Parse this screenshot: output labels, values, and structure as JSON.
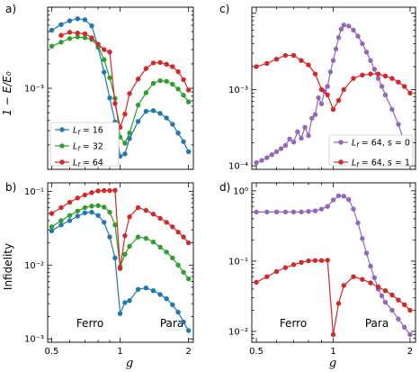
{
  "colors": {
    "blue": "#1f77b4",
    "green": "#2ca02c",
    "red": "#d62728",
    "purple": "#9467bd"
  },
  "chart_data": [
    {
      "panel": "a)",
      "type": "line",
      "ylabel": "1 − E/E₀",
      "xlabel": "",
      "xscale": "log",
      "yscale": "log",
      "xlim": [
        0.48,
        2.1
      ],
      "ylim": [
        0.0001,
        0.01
      ],
      "yticks": [
        {
          "v": 0.001,
          "label": "10⁻³"
        }
      ],
      "xticks": [],
      "legend": "lower-left",
      "series": [
        {
          "name": "L_f = 16",
          "color": "#1f77b4",
          "x": [
            0.5,
            0.55,
            0.6,
            0.65,
            0.7,
            0.75,
            0.8,
            0.85,
            0.9,
            0.95,
            1.0,
            1.05,
            1.1,
            1.2,
            1.3,
            1.4,
            1.5,
            1.6,
            1.7,
            1.8,
            1.9,
            2.0
          ],
          "y": [
            0.0052,
            0.0061,
            0.0068,
            0.0072,
            0.007,
            0.0059,
            0.0032,
            0.00158,
            0.00076,
            0.000385,
            0.000145,
            0.000155,
            0.00024,
            0.00039,
            0.00052,
            0.00053,
            0.00049,
            0.00043,
            0.00036,
            0.00028,
            0.00022,
            0.000165
          ]
        },
        {
          "name": "L_f = 32",
          "color": "#2ca02c",
          "x": [
            0.5,
            0.55,
            0.6,
            0.65,
            0.7,
            0.75,
            0.8,
            0.85,
            0.9,
            0.95,
            1.0,
            1.05,
            1.1,
            1.2,
            1.3,
            1.4,
            1.5,
            1.6,
            1.7,
            1.8,
            1.9,
            2.0
          ],
          "y": [
            0.0033,
            0.0037,
            0.0041,
            0.0043,
            0.0042,
            0.004,
            0.0033,
            0.00225,
            0.00135,
            0.00075,
            0.00025,
            0.00021,
            0.00028,
            0.00062,
            0.00088,
            0.00115,
            0.00124,
            0.00122,
            0.00112,
            0.00098,
            0.00082,
            0.00068
          ]
        },
        {
          "name": "L_f = 64",
          "color": "#d62728",
          "x": [
            0.55,
            0.6,
            0.65,
            0.7,
            0.75,
            0.8,
            0.85,
            0.9,
            0.95,
            1.0,
            1.05,
            1.1,
            1.2,
            1.3,
            1.4,
            1.5,
            1.6,
            1.7,
            1.8,
            1.9,
            2.0
          ],
          "y": [
            0.0045,
            0.0049,
            0.0048,
            0.0047,
            0.0042,
            0.0035,
            0.003,
            0.0028,
            0.00065,
            0.00033,
            0.00048,
            0.00086,
            0.0013,
            0.00175,
            0.00205,
            0.00208,
            0.00198,
            0.00185,
            0.0016,
            0.00128,
            0.00095
          ]
        }
      ]
    },
    {
      "panel": "b)",
      "type": "line",
      "ylabel": "Infidelity",
      "xlabel": "g",
      "xscale": "log",
      "yscale": "log",
      "xlim": [
        0.48,
        2.1
      ],
      "ylim": [
        0.0009,
        0.13
      ],
      "yticks": [
        {
          "v": 0.1,
          "label": "10⁻¹"
        },
        {
          "v": 0.01,
          "label": "10⁻²"
        },
        {
          "v": 0.001,
          "label": "10⁻³"
        }
      ],
      "xticks": [
        {
          "v": 0.5,
          "label": "0.5"
        },
        {
          "v": 1,
          "label": "1"
        },
        {
          "v": 2,
          "label": "2"
        }
      ],
      "annotations": [
        "Ferro",
        "Para"
      ],
      "series": [
        {
          "name": "L_f = 16",
          "color": "#1f77b4",
          "x": [
            0.5,
            0.55,
            0.6,
            0.65,
            0.7,
            0.75,
            0.8,
            0.85,
            0.9,
            0.95,
            1.0,
            1.05,
            1.1,
            1.2,
            1.3,
            1.4,
            1.5,
            1.6,
            1.7,
            1.8,
            1.9,
            2.0
          ],
          "y": [
            0.029,
            0.035,
            0.04,
            0.046,
            0.051,
            0.052,
            0.047,
            0.038,
            0.024,
            0.0125,
            0.0022,
            0.0031,
            0.0033,
            0.0047,
            0.0049,
            0.0045,
            0.004,
            0.0035,
            0.0029,
            0.0023,
            0.0017,
            0.0013
          ]
        },
        {
          "name": "L_f = 32",
          "color": "#2ca02c",
          "x": [
            0.5,
            0.55,
            0.6,
            0.65,
            0.7,
            0.75,
            0.8,
            0.85,
            0.9,
            0.95,
            1.0,
            1.05,
            1.1,
            1.2,
            1.3,
            1.4,
            1.5,
            1.6,
            1.7,
            1.8,
            1.9,
            2.0
          ],
          "y": [
            0.033,
            0.04,
            0.047,
            0.054,
            0.06,
            0.063,
            0.064,
            0.061,
            0.052,
            0.035,
            0.0095,
            0.014,
            0.018,
            0.024,
            0.023,
            0.0205,
            0.0175,
            0.015,
            0.0125,
            0.01,
            0.008,
            0.0065
          ]
        },
        {
          "name": "L_f = 64",
          "color": "#d62728",
          "x": [
            0.5,
            0.55,
            0.6,
            0.65,
            0.7,
            0.75,
            0.8,
            0.85,
            0.9,
            0.95,
            1.0,
            1.05,
            1.1,
            1.2,
            1.3,
            1.4,
            1.5,
            1.6,
            1.7,
            1.8,
            1.9,
            2.0
          ],
          "y": [
            0.05,
            0.06,
            0.071,
            0.081,
            0.089,
            0.096,
            0.101,
            0.102,
            0.102,
            0.103,
            0.009,
            0.025,
            0.045,
            0.06,
            0.055,
            0.049,
            0.043,
            0.038,
            0.033,
            0.028,
            0.024,
            0.02
          ]
        }
      ]
    },
    {
      "panel": "c)",
      "type": "line",
      "ylabel": "",
      "xlabel": "",
      "xscale": "log",
      "yscale": "log",
      "xlim": [
        0.48,
        2.1
      ],
      "ylim": [
        9e-05,
        0.012
      ],
      "yticks": [
        {
          "v": 0.001,
          "label": "10⁻³"
        },
        {
          "v": 0.0001,
          "label": "10⁻⁴"
        }
      ],
      "xticks": [],
      "legend": "lower-right",
      "series": [
        {
          "name": "L_f = 64, s = 0",
          "color": "#9467bd",
          "x": [
            0.5,
            0.525,
            0.55,
            0.575,
            0.6,
            0.625,
            0.65,
            0.675,
            0.7,
            0.725,
            0.75,
            0.775,
            0.8,
            0.825,
            0.85,
            0.875,
            0.9,
            0.925,
            0.95,
            0.975,
            1.0,
            1.025,
            1.05,
            1.075,
            1.1,
            1.15,
            1.2,
            1.25,
            1.3,
            1.35,
            1.4,
            1.45,
            1.5,
            1.55,
            1.6,
            1.7,
            1.8,
            1.9,
            2.0
          ],
          "y": [
            0.00011,
            0.000118,
            0.000128,
            0.00014,
            0.000153,
            0.000168,
            0.000185,
            0.000225,
            0.000205,
            0.00028,
            0.00023,
            0.00032,
            0.00025,
            0.00042,
            0.00047,
            0.00078,
            0.00065,
            0.00095,
            0.0011,
            0.0017,
            0.0024,
            0.0034,
            0.0048,
            0.0062,
            0.007,
            0.0068,
            0.006,
            0.005,
            0.004,
            0.0031,
            0.0024,
            0.00185,
            0.0014,
            0.0011,
            0.00085,
            0.00055,
            0.00035,
            0.0002,
            0.000135
          ]
        },
        {
          "name": "L_f = 64, s = 1",
          "color": "#d62728",
          "x": [
            0.5,
            0.55,
            0.6,
            0.65,
            0.7,
            0.75,
            0.8,
            0.85,
            0.9,
            0.95,
            1.0,
            1.05,
            1.1,
            1.2,
            1.3,
            1.4,
            1.5,
            1.6,
            1.7,
            1.8,
            1.9,
            2.0
          ],
          "y": [
            0.002,
            0.0022,
            0.0025,
            0.0028,
            0.0028,
            0.0024,
            0.0021,
            0.0016,
            0.001,
            0.00085,
            0.00055,
            0.00072,
            0.001,
            0.0014,
            0.00155,
            0.0016,
            0.0016,
            0.0015,
            0.0014,
            0.00125,
            0.0011,
            0.0009
          ]
        }
      ]
    },
    {
      "panel": "d)",
      "type": "line",
      "ylabel": "",
      "xlabel": "g",
      "xscale": "log",
      "yscale": "log",
      "xlim": [
        0.48,
        2.1
      ],
      "ylim": [
        0.007,
        1.3
      ],
      "yticks": [
        {
          "v": 1,
          "label": "10⁰"
        },
        {
          "v": 0.1,
          "label": "10⁻¹"
        },
        {
          "v": 0.01,
          "label": "10⁻²"
        }
      ],
      "xticks": [
        {
          "v": 0.5,
          "label": "0.5"
        },
        {
          "v": 1,
          "label": "1"
        },
        {
          "v": 2,
          "label": "2"
        }
      ],
      "annotations": [
        "Ferro",
        "Para"
      ],
      "series": [
        {
          "name": "L_f = 64, s = 0",
          "color": "#9467bd",
          "x": [
            0.5,
            0.55,
            0.6,
            0.65,
            0.7,
            0.75,
            0.8,
            0.85,
            0.9,
            0.95,
            1.0,
            1.05,
            1.1,
            1.15,
            1.2,
            1.25,
            1.3,
            1.35,
            1.4,
            1.45,
            1.5,
            1.55,
            1.6,
            1.7,
            1.8,
            1.9,
            2.0
          ],
          "y": [
            0.5,
            0.5,
            0.5,
            0.5,
            0.5,
            0.5,
            0.51,
            0.52,
            0.55,
            0.6,
            0.74,
            0.85,
            0.84,
            0.75,
            0.55,
            0.35,
            0.21,
            0.13,
            0.085,
            0.058,
            0.04,
            0.032,
            0.026,
            0.02,
            0.015,
            0.0115,
            0.009
          ]
        },
        {
          "name": "L_f = 64, s = 1",
          "color": "#d62728",
          "x": [
            0.5,
            0.55,
            0.6,
            0.65,
            0.7,
            0.75,
            0.8,
            0.85,
            0.9,
            0.95,
            1.0,
            1.05,
            1.1,
            1.2,
            1.3,
            1.4,
            1.5,
            1.6,
            1.7,
            1.8,
            1.9,
            2.0
          ],
          "y": [
            0.05,
            0.06,
            0.071,
            0.081,
            0.089,
            0.096,
            0.101,
            0.102,
            0.102,
            0.103,
            0.009,
            0.025,
            0.045,
            0.06,
            0.055,
            0.049,
            0.043,
            0.038,
            0.033,
            0.028,
            0.024,
            0.02
          ]
        }
      ]
    }
  ],
  "text": {
    "panel_a": "a)",
    "panel_b": "b)",
    "panel_c": "c)",
    "panel_d": "d)",
    "ylabel_top": "1 − E/E₀",
    "ylabel_bottom": "Infidelity",
    "xlabel": "g",
    "ferro": "Ferro",
    "para": "Para",
    "legend_a": [
      "L_f = 16",
      "L_f = 32",
      "L_f = 64"
    ],
    "legend_c": [
      "L_f = 64, s = 0",
      "L_f = 64, s = 1"
    ]
  }
}
